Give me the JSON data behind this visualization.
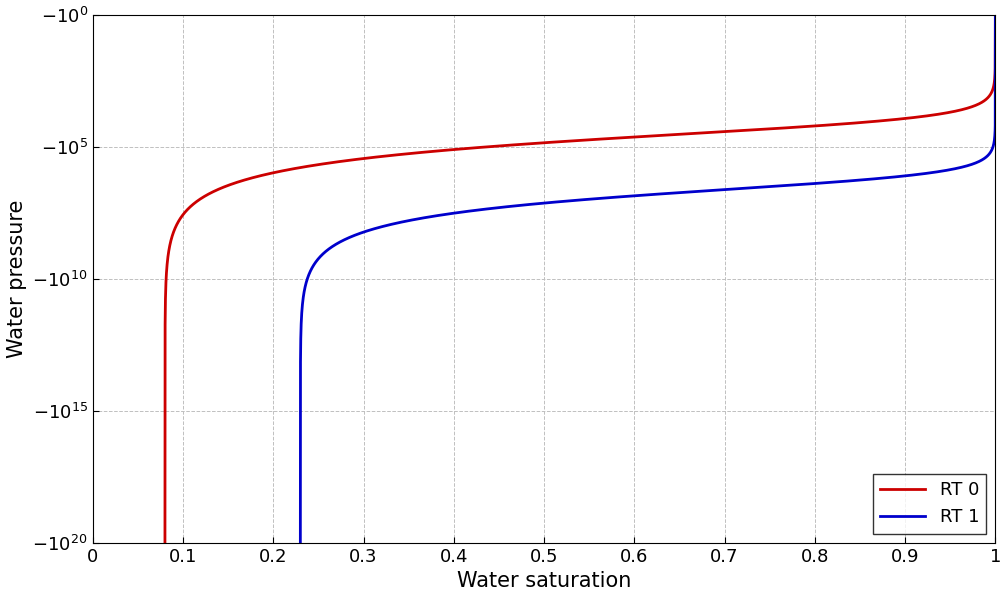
{
  "title": "",
  "xlabel": "Water saturation",
  "ylabel": "Water pressure",
  "xlim": [
    0,
    1
  ],
  "x_ticks": [
    0,
    0.1,
    0.2,
    0.3,
    0.4,
    0.5,
    0.6,
    0.7,
    0.8,
    0.9,
    1.0
  ],
  "y_ticks_exp": [
    0,
    5,
    10,
    15,
    20
  ],
  "grid_color": "#c0c0c0",
  "grid_style": "--",
  "background_color": "#ffffff",
  "RT0": {
    "color": "#cc0000",
    "label": "RT 0",
    "Sl_r": 0.08,
    "Sg_r": 0.0,
    "Pr": 15000.0,
    "n": 1.49,
    "linewidth": 2.0
  },
  "RT1": {
    "color": "#0000cc",
    "label": "RT 1",
    "Sl_r": 0.23,
    "Sg_r": 0.0,
    "Pr": 2000000.0,
    "n": 1.54,
    "linewidth": 2.0
  },
  "legend_loc": "lower right",
  "legend_fontsize": 13,
  "axis_fontsize": 15,
  "tick_fontsize": 13,
  "figsize": [
    10.08,
    5.98
  ],
  "dpi": 100
}
